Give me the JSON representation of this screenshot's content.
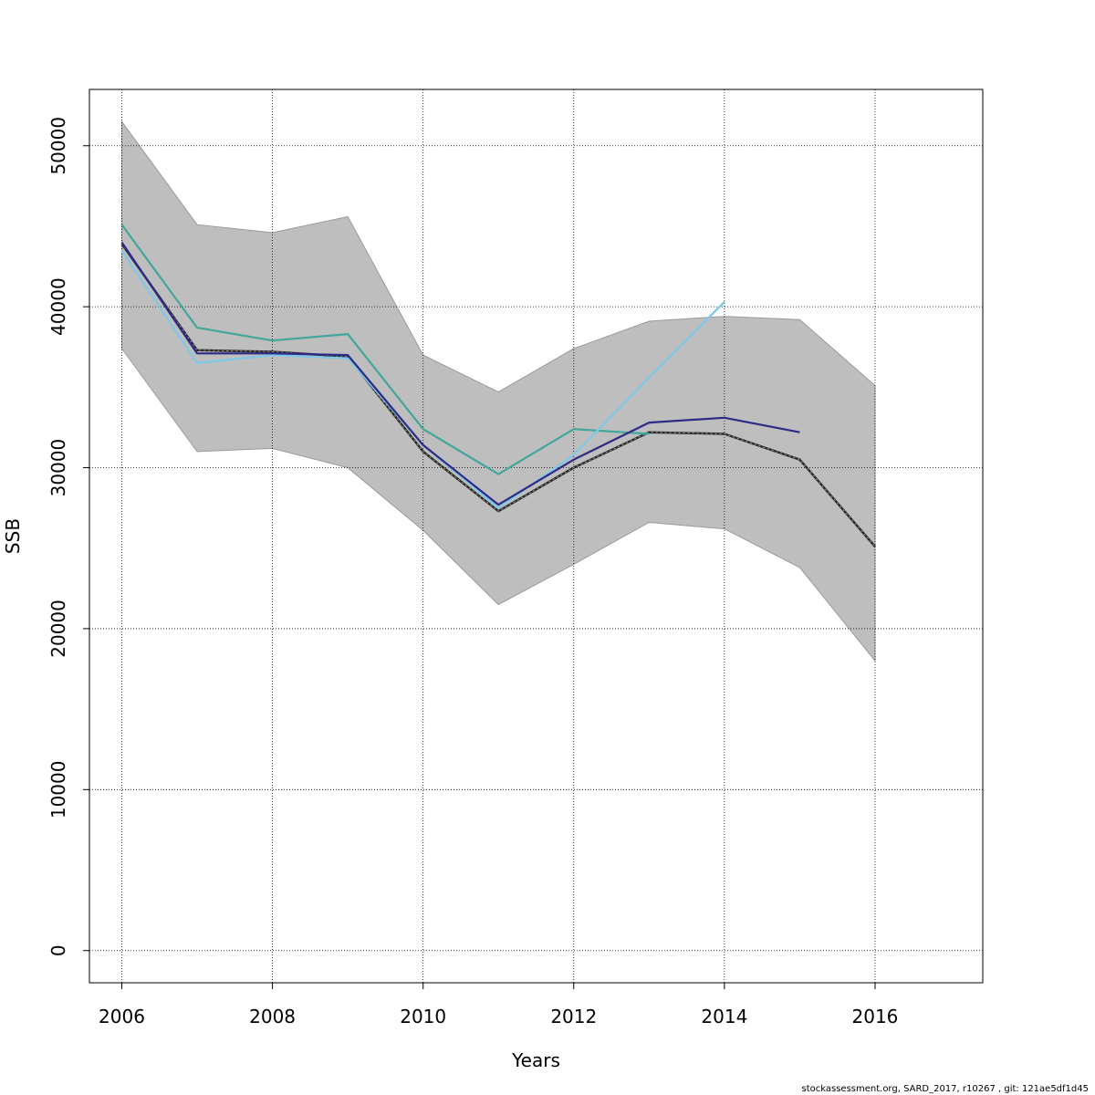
{
  "chart_data": {
    "type": "line",
    "xlabel": "Years",
    "ylabel": "SSB",
    "xlim": [
      2005.57,
      2017.43
    ],
    "ylim": [
      -2000,
      53500
    ],
    "x_ticks": [
      2006,
      2008,
      2010,
      2012,
      2014,
      2016
    ],
    "y_ticks": [
      0,
      10000,
      20000,
      30000,
      40000,
      50000
    ],
    "x_tick_labels": [
      "2006",
      "2008",
      "2010",
      "2012",
      "2014",
      "2016"
    ],
    "y_tick_labels": [
      "0",
      "10000",
      "20000",
      "30000",
      "40000",
      "50000"
    ],
    "grid": true,
    "confidence_band": {
      "color": "#bebebe",
      "x": [
        2006,
        2007,
        2008,
        2009,
        2010,
        2011,
        2012,
        2013,
        2014,
        2015,
        2016
      ],
      "lower": [
        37400,
        31000,
        31200,
        30000,
        26100,
        21500,
        24000,
        26600,
        26200,
        23800,
        18000
      ],
      "upper": [
        51500,
        45100,
        44600,
        45600,
        37000,
        34700,
        37400,
        39100,
        39400,
        39200,
        35100
      ]
    },
    "series": [
      {
        "color": "#2a2a2a",
        "dashed": true,
        "x": [
          2006,
          2007,
          2008,
          2009,
          2010,
          2011,
          2012,
          2013,
          2014,
          2015,
          2016
        ],
        "values": [
          43900,
          37300,
          37200,
          36900,
          31000,
          27300,
          30000,
          32200,
          32100,
          30500,
          25100
        ]
      },
      {
        "color": "#41a79a",
        "dashed": false,
        "x": [
          2006,
          2007,
          2008,
          2009,
          2010,
          2011,
          2012,
          2013
        ],
        "values": [
          45100,
          38700,
          37900,
          38300,
          32400,
          29600,
          32400,
          32100
        ]
      },
      {
        "color": "#7ec8e8",
        "dashed": false,
        "x": [
          2006,
          2007,
          2008,
          2009,
          2010,
          2011,
          2012,
          2013,
          2014
        ],
        "values": [
          43500,
          36500,
          37000,
          36800,
          31400,
          27500,
          30800,
          35600,
          40300
        ]
      },
      {
        "color": "#2e2a87",
        "dashed": false,
        "x": [
          2006,
          2007,
          2008,
          2009,
          2010,
          2011,
          2012,
          2013,
          2014,
          2015
        ],
        "values": [
          44000,
          37100,
          37100,
          37000,
          31400,
          27700,
          30500,
          32800,
          33100,
          32200
        ]
      }
    ]
  },
  "footer": "stockassessment.org, SARD_2017, r10267 , git: 121ae5df1d45"
}
